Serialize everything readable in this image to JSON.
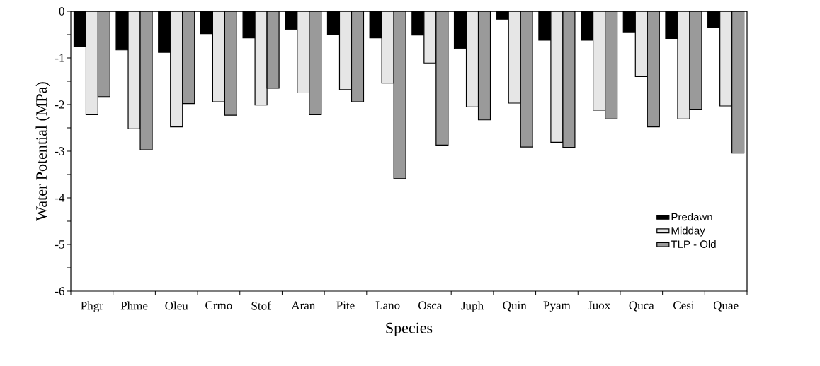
{
  "chart_data": {
    "type": "bar",
    "xlabel": "Species",
    "ylabel": "Water Potential (MPa)",
    "categories": [
      "Phgr",
      "Phme",
      "Oleu",
      "Crmo",
      "Stof",
      "Aran",
      "Pite",
      "Lano",
      "Osca",
      "Juph",
      "Quin",
      "Pyam",
      "Juox",
      "Quca",
      "Cesi",
      "Quae"
    ],
    "series": [
      {
        "name": "Predawn",
        "color": "#000000",
        "values": [
          -0.76,
          -0.83,
          -0.88,
          -0.48,
          -0.57,
          -0.39,
          -0.5,
          -0.57,
          -0.51,
          -0.8,
          -0.17,
          -0.62,
          -0.62,
          -0.44,
          -0.58,
          -0.34
        ]
      },
      {
        "name": "Midday",
        "color": "#e6e6e6",
        "values": [
          -2.22,
          -2.52,
          -2.48,
          -1.94,
          -2.01,
          -1.75,
          -1.68,
          -1.54,
          -1.11,
          -2.05,
          -1.97,
          -2.81,
          -2.12,
          -1.4,
          -2.31,
          -2.03
        ]
      },
      {
        "name": "TLP - Old",
        "color": "#9a9a9a",
        "values": [
          -1.83,
          -2.97,
          -1.98,
          -2.23,
          -1.65,
          -2.22,
          -1.94,
          -3.59,
          -2.87,
          -2.33,
          -2.91,
          -2.92,
          -2.31,
          -2.48,
          -2.1,
          -3.04
        ]
      }
    ],
    "ylim": [
      -6,
      0
    ],
    "yticks": [
      0,
      -1,
      -2,
      -3,
      -4,
      -5,
      -6
    ],
    "grid": false,
    "legend": "bottom right"
  }
}
